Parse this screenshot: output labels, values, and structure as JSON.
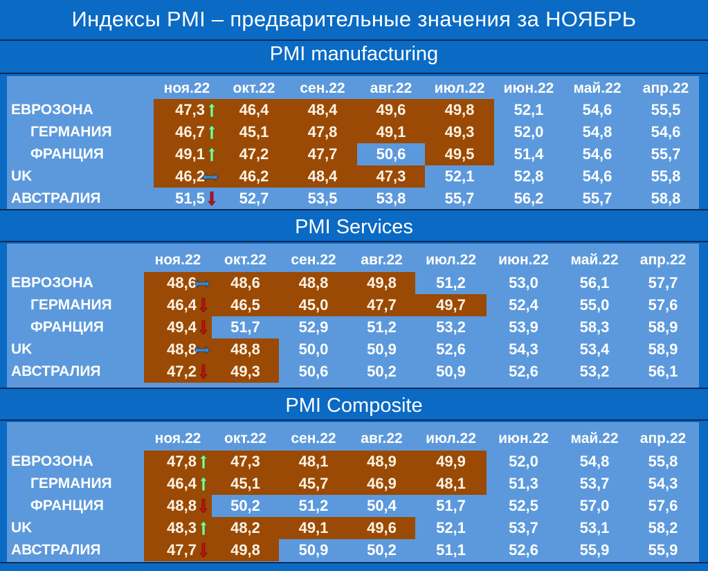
{
  "title": "Индексы PMI – предварительные значения за НОЯБРЬ",
  "colors": {
    "background": "#0a6ac4",
    "panel": "#5c99dc",
    "highlight_below_50": "#9a4a04",
    "arrow_up": "#8ef08e",
    "arrow_down": "#c0101a",
    "arrow_flat": "#3a8ad8"
  },
  "columns": [
    "ноя.22",
    "окт.22",
    "сен.22",
    "авг.22",
    "июл.22",
    "июн.22",
    "май.22",
    "апр.22"
  ],
  "chart_data": [
    {
      "type": "table",
      "title": "PMI manufacturing",
      "categories": [
        "ноя.22",
        "окт.22",
        "сен.22",
        "авг.22",
        "июл.22",
        "июн.22",
        "май.22",
        "апр.22"
      ],
      "series": [
        {
          "name": "ЕВРОЗОНА",
          "values": [
            47.3,
            46.4,
            48.4,
            49.6,
            49.8,
            52.1,
            54.6,
            55.5
          ],
          "trend": "up"
        },
        {
          "name": "ГЕРМАНИЯ",
          "values": [
            46.7,
            45.1,
            47.8,
            49.1,
            49.3,
            52.0,
            54.8,
            54.6
          ],
          "trend": "up"
        },
        {
          "name": "ФРАНЦИЯ",
          "values": [
            49.1,
            47.2,
            47.7,
            50.6,
            49.5,
            51.4,
            54.6,
            55.7
          ],
          "trend": "up"
        },
        {
          "name": "UK",
          "values": [
            46.2,
            46.2,
            48.4,
            47.3,
            52.1,
            52.8,
            54.6,
            55.8
          ],
          "trend": "flat"
        },
        {
          "name": "АВСТРАЛИЯ",
          "values": [
            51.5,
            52.7,
            53.5,
            53.8,
            55.7,
            56.2,
            55.7,
            58.8
          ],
          "trend": "down"
        }
      ]
    },
    {
      "type": "table",
      "title": "PMI Services",
      "categories": [
        "ноя.22",
        "окт.22",
        "сен.22",
        "авг.22",
        "июл.22",
        "июн.22",
        "май.22",
        "апр.22"
      ],
      "series": [
        {
          "name": "ЕВРОЗОНА",
          "values": [
            48.6,
            48.6,
            48.8,
            49.8,
            51.2,
            53.0,
            56.1,
            57.7
          ],
          "trend": "flat"
        },
        {
          "name": "ГЕРМАНИЯ",
          "values": [
            46.4,
            46.5,
            45.0,
            47.7,
            49.7,
            52.4,
            55.0,
            57.6
          ],
          "trend": "down"
        },
        {
          "name": "ФРАНЦИЯ",
          "values": [
            49.4,
            51.7,
            52.9,
            51.2,
            53.2,
            53.9,
            58.3,
            58.9
          ],
          "trend": "down"
        },
        {
          "name": "UK",
          "values": [
            48.8,
            48.8,
            50.0,
            50.9,
            52.6,
            54.3,
            53.4,
            58.9
          ],
          "trend": "flat"
        },
        {
          "name": "АВСТРАЛИЯ",
          "values": [
            47.2,
            49.3,
            50.6,
            50.2,
            50.9,
            52.6,
            53.2,
            56.1
          ],
          "trend": "down"
        }
      ]
    },
    {
      "type": "table",
      "title": "PMI Composite",
      "categories": [
        "ноя.22",
        "окт.22",
        "сен.22",
        "авг.22",
        "июл.22",
        "июн.22",
        "май.22",
        "апр.22"
      ],
      "series": [
        {
          "name": "ЕВРОЗОНА",
          "values": [
            47.8,
            47.3,
            48.1,
            48.9,
            49.9,
            52.0,
            54.8,
            55.8
          ],
          "trend": "up"
        },
        {
          "name": "ГЕРМАНИЯ",
          "values": [
            46.4,
            45.1,
            45.7,
            46.9,
            48.1,
            51.3,
            53.7,
            54.3
          ],
          "trend": "up"
        },
        {
          "name": "ФРАНЦИЯ",
          "values": [
            48.8,
            50.2,
            51.2,
            50.4,
            51.7,
            52.5,
            57.0,
            57.6
          ],
          "trend": "down"
        },
        {
          "name": "UK",
          "values": [
            48.3,
            48.2,
            49.1,
            49.6,
            52.1,
            53.7,
            53.1,
            58.2
          ],
          "trend": "up"
        },
        {
          "name": "АВСТРАЛИЯ",
          "values": [
            47.7,
            49.8,
            50.9,
            50.2,
            51.1,
            52.6,
            55.9,
            55.9
          ],
          "trend": "down"
        }
      ]
    }
  ],
  "tables": [
    {
      "title": "PMI manufacturing",
      "rows": [
        {
          "label": "ЕВРОЗОНА",
          "indent": false,
          "trend": "up",
          "cells": [
            "47,3",
            "46,4",
            "48,4",
            "49,6",
            "49,8",
            "52,1",
            "54,6",
            "55,5"
          ]
        },
        {
          "label": "ГЕРМАНИЯ",
          "indent": true,
          "trend": "up",
          "cells": [
            "46,7",
            "45,1",
            "47,8",
            "49,1",
            "49,3",
            "52,0",
            "54,8",
            "54,6"
          ]
        },
        {
          "label": "ФРАНЦИЯ",
          "indent": true,
          "trend": "up",
          "cells": [
            "49,1",
            "47,2",
            "47,7",
            "50,6",
            "49,5",
            "51,4",
            "54,6",
            "55,7"
          ]
        },
        {
          "label": "UK",
          "indent": false,
          "trend": "flat",
          "cells": [
            "46,2",
            "46,2",
            "48,4",
            "47,3",
            "52,1",
            "52,8",
            "54,6",
            "55,8"
          ]
        },
        {
          "label": "АВСТРАЛИЯ",
          "indent": false,
          "trend": "down",
          "cells": [
            "51,5",
            "52,7",
            "53,5",
            "53,8",
            "55,7",
            "56,2",
            "55,7",
            "58,8"
          ]
        }
      ]
    },
    {
      "title": "PMI Services",
      "rows": [
        {
          "label": "ЕВРОЗОНА",
          "indent": false,
          "trend": "flat",
          "cells": [
            "48,6",
            "48,6",
            "48,8",
            "49,8",
            "51,2",
            "53,0",
            "56,1",
            "57,7"
          ]
        },
        {
          "label": "ГЕРМАНИЯ",
          "indent": true,
          "trend": "down",
          "cells": [
            "46,4",
            "46,5",
            "45,0",
            "47,7",
            "49,7",
            "52,4",
            "55,0",
            "57,6"
          ]
        },
        {
          "label": "ФРАНЦИЯ",
          "indent": true,
          "trend": "down",
          "cells": [
            "49,4",
            "51,7",
            "52,9",
            "51,2",
            "53,2",
            "53,9",
            "58,3",
            "58,9"
          ]
        },
        {
          "label": "UK",
          "indent": false,
          "trend": "flat",
          "cells": [
            "48,8",
            "48,8",
            "50,0",
            "50,9",
            "52,6",
            "54,3",
            "53,4",
            "58,9"
          ]
        },
        {
          "label": "АВСТРАЛИЯ",
          "indent": false,
          "trend": "down",
          "cells": [
            "47,2",
            "49,3",
            "50,6",
            "50,2",
            "50,9",
            "52,6",
            "53,2",
            "56,1"
          ]
        }
      ]
    },
    {
      "title": "PMI Composite",
      "rows": [
        {
          "label": "ЕВРОЗОНА",
          "indent": false,
          "trend": "up",
          "cells": [
            "47,8",
            "47,3",
            "48,1",
            "48,9",
            "49,9",
            "52,0",
            "54,8",
            "55,8"
          ]
        },
        {
          "label": "ГЕРМАНИЯ",
          "indent": true,
          "trend": "up",
          "cells": [
            "46,4",
            "45,1",
            "45,7",
            "46,9",
            "48,1",
            "51,3",
            "53,7",
            "54,3"
          ]
        },
        {
          "label": "ФРАНЦИЯ",
          "indent": true,
          "trend": "down",
          "cells": [
            "48,8",
            "50,2",
            "51,2",
            "50,4",
            "51,7",
            "52,5",
            "57,0",
            "57,6"
          ]
        },
        {
          "label": "UK",
          "indent": false,
          "trend": "up",
          "cells": [
            "48,3",
            "48,2",
            "49,1",
            "49,6",
            "52,1",
            "53,7",
            "53,1",
            "58,2"
          ]
        },
        {
          "label": "АВСТРАЛИЯ",
          "indent": false,
          "trend": "down",
          "cells": [
            "47,7",
            "49,8",
            "50,9",
            "50,2",
            "51,1",
            "52,6",
            "55,9",
            "55,9"
          ]
        }
      ]
    }
  ]
}
